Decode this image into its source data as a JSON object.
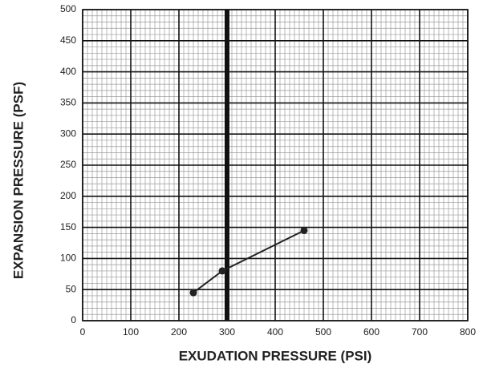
{
  "chart_data": {
    "type": "line",
    "xlabel": "EXUDATION PRESSURE (PSI)",
    "ylabel": "EXPANSION PRESSURE (PSF)",
    "series": [
      {
        "color": "#222222",
        "x": [
          230,
          290,
          460
        ],
        "values": [
          45,
          80,
          145
        ]
      }
    ],
    "xlim": [
      0,
      800
    ],
    "xticks": [
      0,
      100,
      200,
      300,
      400,
      500,
      600,
      700,
      800
    ],
    "ylim": [
      0,
      500
    ],
    "yticks": [
      0,
      50,
      100,
      150,
      200,
      250,
      300,
      350,
      400,
      450,
      500
    ],
    "grid": true,
    "minor_grid": {
      "x": 10,
      "y": 10
    },
    "reference_line_x": 300
  }
}
